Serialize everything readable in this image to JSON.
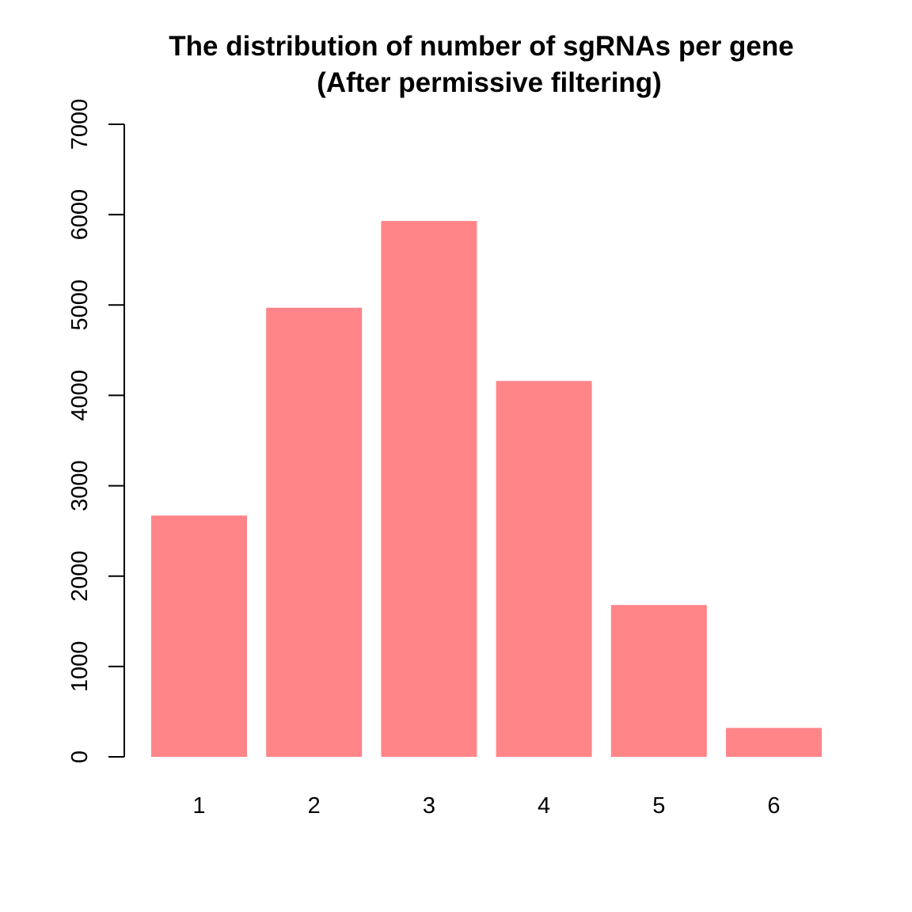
{
  "chart_data": {
    "type": "bar",
    "title_lines": [
      "The distribution of number of sgRNAs per gene",
      "(After permissive filtering)"
    ],
    "categories": [
      "1",
      "2",
      "3",
      "4",
      "5",
      "6"
    ],
    "values": [
      2670,
      4970,
      5930,
      4160,
      1680,
      320
    ],
    "ylim": [
      0,
      7000
    ],
    "yticks": [
      0,
      1000,
      2000,
      3000,
      4000,
      5000,
      6000,
      7000
    ],
    "ytick_labels": [
      "0",
      "1000",
      "2000",
      "3000",
      "4000",
      "5000",
      "6000",
      "7000"
    ],
    "xlabel": "",
    "ylabel": "",
    "bar_color": "#ff8589",
    "grid": false,
    "legend": "none"
  }
}
